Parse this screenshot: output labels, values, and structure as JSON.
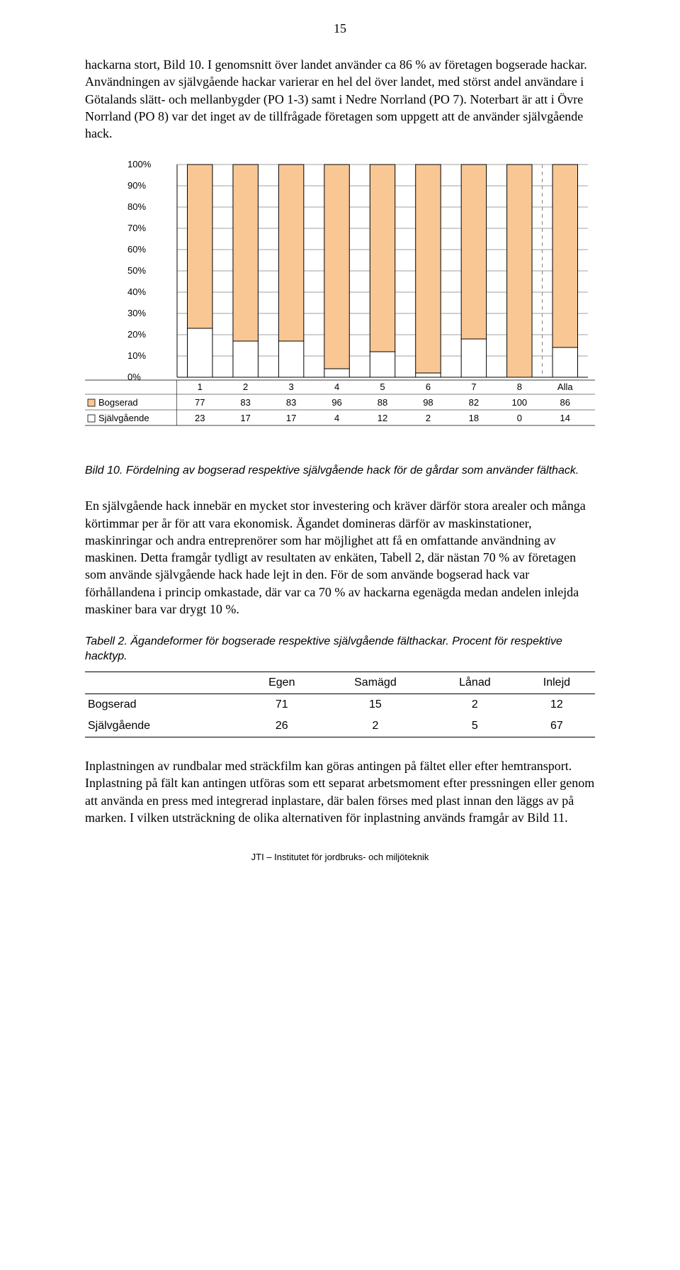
{
  "page_number": "15",
  "paragraphs": {
    "p1": "hackarna stort, Bild 10. I genomsnitt över landet använder ca 86 % av företagen bogserade hackar. Användningen av självgående hackar varierar en hel del över landet, med störst andel användare i Götalands slätt- och mellanbygder (PO 1-3) samt i Nedre Norrland (PO 7). Noterbart är att i Övre Norrland (PO 8) var det inget av de tillfrågade företagen som uppgett att de använder självgående hack.",
    "p2": "En självgående hack innebär en mycket stor investering och kräver därför stora arealer och många körtimmar per år för att vara ekonomisk. Ägandet domineras därför av maskinstationer, maskinringar och andra entreprenörer som har möjlighet att få en omfattande användning av maskinen. Detta framgår tydligt av resultaten av enkäten, Tabell 2, där nästan 70 % av företagen som använde självgående hack hade lejt in den. För de som använde bogserad hack var förhållandena i princip omkastade, där var ca 70 % av hackarna egenägda medan andelen inlejda maskiner bara var drygt 10 %.",
    "p3": "Inplastningen av rundbalar med sträckfilm kan göras antingen på fältet eller efter hemtransport. Inplastning på fält kan antingen utföras som ett separat arbetsmoment efter pressningen eller genom att använda en press med integrerad inplastare, där balen förses med plast innan den läggs av på marken. I vilken utsträckning de olika alternativen för inplastning används framgår av Bild 11."
  },
  "chart": {
    "type": "stacked-bar",
    "categories": [
      "1",
      "2",
      "3",
      "4",
      "5",
      "6",
      "7",
      "8",
      "Alla"
    ],
    "series": [
      {
        "name": "Bogserad",
        "values": [
          77,
          83,
          83,
          96,
          88,
          98,
          82,
          100,
          86
        ],
        "fill": "#f9c794",
        "border": "#000000"
      },
      {
        "name": "Självgående",
        "values": [
          23,
          17,
          17,
          4,
          12,
          2,
          18,
          0,
          14
        ],
        "fill": "#ffffff",
        "border": "#000000"
      }
    ],
    "y": {
      "min": 0,
      "max": 100,
      "step": 10,
      "labels": [
        "0%",
        "10%",
        "20%",
        "30%",
        "40%",
        "50%",
        "60%",
        "70%",
        "80%",
        "90%",
        "100%"
      ]
    },
    "plot": {
      "background": "#ffffff",
      "grid_color": "#808080",
      "axis_color": "#000000",
      "bar_fill_top": "#f9c794",
      "bar_fill_bottom": "#ffffff",
      "bar_border": "#000000",
      "divider_after_index": 7,
      "divider_style": "dashed",
      "divider_color": "#808080",
      "font_family": "Arial, Helvetica, sans-serif",
      "font_size_axis": 13,
      "font_size_table": 13,
      "bar_width_ratio": 0.55,
      "legend_box_size": 10
    },
    "legend_labels": [
      "Bogserad",
      "Självgående"
    ],
    "data_row_labels": [
      "Bogserad",
      "Självgående"
    ]
  },
  "chart_caption": "Bild 10. Fördelning av bogserad respektive självgående hack för de gårdar som använder fälthack.",
  "table": {
    "caption": "Tabell 2. Ägandeformer för bogserade respektive självgående fälthackar. Procent för respektive hacktyp.",
    "columns": [
      "",
      "Egen",
      "Samägd",
      "Lånad",
      "Inlejd"
    ],
    "rows": [
      [
        "Bogserad",
        "71",
        "15",
        "2",
        "12"
      ],
      [
        "Självgående",
        "26",
        "2",
        "5",
        "67"
      ]
    ]
  },
  "footer": "JTI – Institutet för jordbruks- och miljöteknik"
}
